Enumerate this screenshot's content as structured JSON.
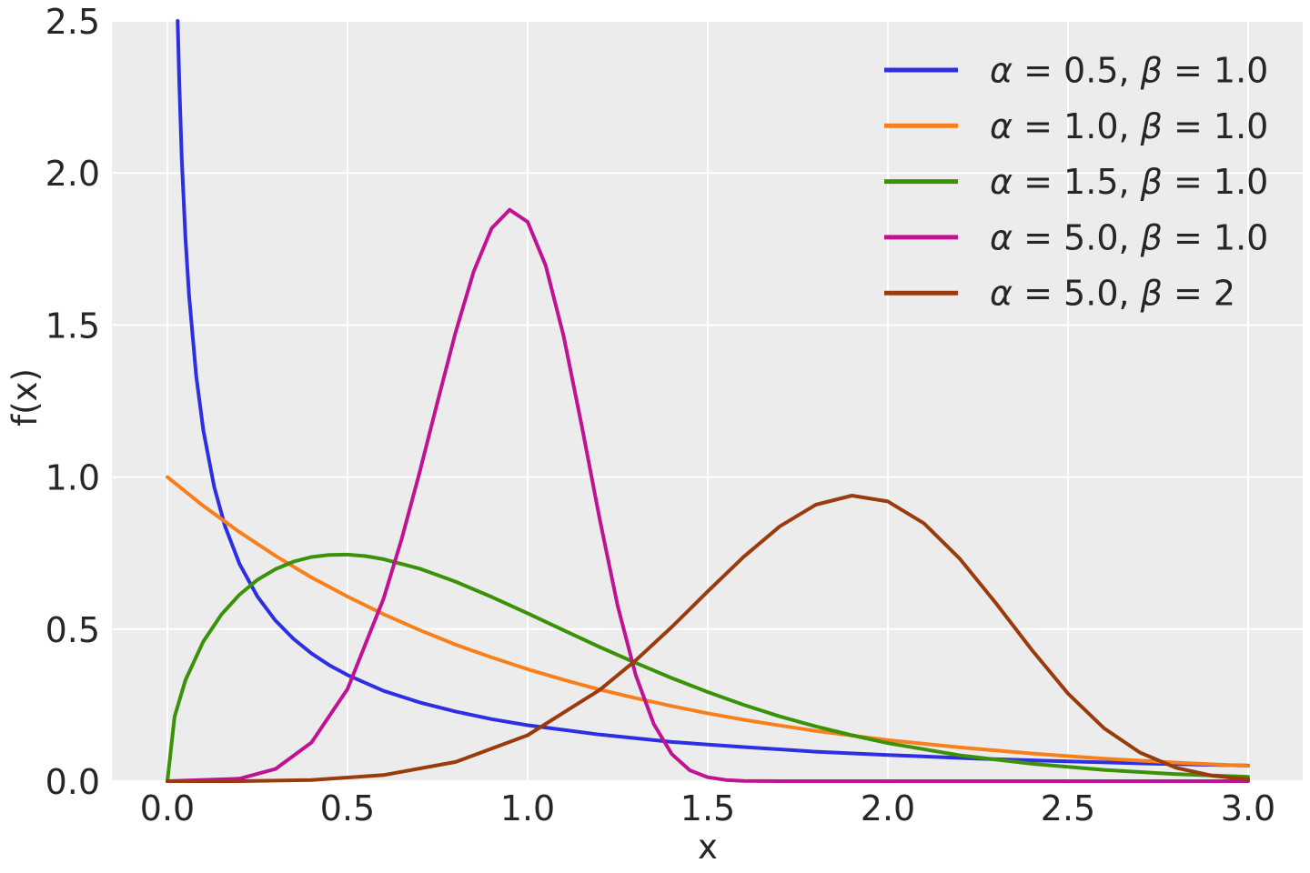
{
  "figure": {
    "background_color": "#ffffff",
    "plot_background_color": "#ececec",
    "grid_color": "#ffffff",
    "text_color": "#262626"
  },
  "chart_data": {
    "type": "line",
    "title": "",
    "xlabel": "x",
    "ylabel": "f(x)",
    "xlim": [
      -0.15,
      3.15
    ],
    "ylim": [
      0,
      2.5
    ],
    "grid": true,
    "legend_position": "upper right",
    "x_ticks": [
      {
        "value": 0.0,
        "label": "0.0"
      },
      {
        "value": 0.5,
        "label": "0.5"
      },
      {
        "value": 1.0,
        "label": "1.0"
      },
      {
        "value": 1.5,
        "label": "1.5"
      },
      {
        "value": 2.0,
        "label": "2.0"
      },
      {
        "value": 2.5,
        "label": "2.5"
      },
      {
        "value": 3.0,
        "label": "3.0"
      }
    ],
    "y_ticks": [
      {
        "value": 0.0,
        "label": "0.0"
      },
      {
        "value": 0.5,
        "label": "0.5"
      },
      {
        "value": 1.0,
        "label": "1.0"
      },
      {
        "value": 1.5,
        "label": "1.5"
      },
      {
        "value": 2.0,
        "label": "2.0"
      },
      {
        "value": 2.5,
        "label": "2.5"
      }
    ],
    "series": [
      {
        "name": "α = 0.5, β = 1.0",
        "color": "#2e2ee2",
        "points": [
          [
            0.0285,
            2.5
          ],
          [
            0.033,
            2.295
          ],
          [
            0.04,
            2.047
          ],
          [
            0.05,
            1.789
          ],
          [
            0.06,
            1.598
          ],
          [
            0.08,
            1.332
          ],
          [
            0.1,
            1.152
          ],
          [
            0.13,
            0.967
          ],
          [
            0.16,
            0.838
          ],
          [
            0.2,
            0.715
          ],
          [
            0.25,
            0.607
          ],
          [
            0.3,
            0.528
          ],
          [
            0.35,
            0.468
          ],
          [
            0.4,
            0.42
          ],
          [
            0.45,
            0.381
          ],
          [
            0.5,
            0.349
          ],
          [
            0.6,
            0.297
          ],
          [
            0.7,
            0.259
          ],
          [
            0.8,
            0.229
          ],
          [
            0.9,
            0.204
          ],
          [
            1.0,
            0.184
          ],
          [
            1.2,
            0.153
          ],
          [
            1.4,
            0.129
          ],
          [
            1.6,
            0.112
          ],
          [
            1.8,
            0.097
          ],
          [
            2.0,
            0.086
          ],
          [
            2.25,
            0.074
          ],
          [
            2.5,
            0.065
          ],
          [
            2.75,
            0.057
          ],
          [
            3.0,
            0.051
          ]
        ]
      },
      {
        "name": "α = 1.0, β = 1.0",
        "color": "#f8801c",
        "points": [
          [
            0,
            1.0
          ],
          [
            0.1,
            0.905
          ],
          [
            0.2,
            0.819
          ],
          [
            0.3,
            0.741
          ],
          [
            0.4,
            0.67
          ],
          [
            0.5,
            0.607
          ],
          [
            0.6,
            0.549
          ],
          [
            0.7,
            0.497
          ],
          [
            0.8,
            0.449
          ],
          [
            0.9,
            0.407
          ],
          [
            1.0,
            0.368
          ],
          [
            1.1,
            0.333
          ],
          [
            1.2,
            0.301
          ],
          [
            1.3,
            0.273
          ],
          [
            1.4,
            0.247
          ],
          [
            1.5,
            0.223
          ],
          [
            1.6,
            0.202
          ],
          [
            1.7,
            0.183
          ],
          [
            1.8,
            0.165
          ],
          [
            1.9,
            0.15
          ],
          [
            2.0,
            0.135
          ],
          [
            2.2,
            0.111
          ],
          [
            2.4,
            0.091
          ],
          [
            2.6,
            0.074
          ],
          [
            2.8,
            0.061
          ],
          [
            3.0,
            0.05
          ]
        ]
      },
      {
        "name": "α = 1.5, β = 1.0",
        "color": "#3a9208",
        "points": [
          [
            0,
            0
          ],
          [
            0.02,
            0.212
          ],
          [
            0.05,
            0.332
          ],
          [
            0.1,
            0.46
          ],
          [
            0.15,
            0.548
          ],
          [
            0.2,
            0.613
          ],
          [
            0.25,
            0.662
          ],
          [
            0.3,
            0.697
          ],
          [
            0.35,
            0.722
          ],
          [
            0.4,
            0.737
          ],
          [
            0.45,
            0.744
          ],
          [
            0.5,
            0.745
          ],
          [
            0.55,
            0.74
          ],
          [
            0.6,
            0.73
          ],
          [
            0.7,
            0.699
          ],
          [
            0.8,
            0.656
          ],
          [
            0.9,
            0.606
          ],
          [
            1.0,
            0.552
          ],
          [
            1.1,
            0.496
          ],
          [
            1.2,
            0.441
          ],
          [
            1.3,
            0.389
          ],
          [
            1.4,
            0.339
          ],
          [
            1.5,
            0.293
          ],
          [
            1.6,
            0.251
          ],
          [
            1.7,
            0.213
          ],
          [
            1.8,
            0.18
          ],
          [
            1.9,
            0.151
          ],
          [
            2.0,
            0.125
          ],
          [
            2.2,
            0.085
          ],
          [
            2.4,
            0.057
          ],
          [
            2.6,
            0.037
          ],
          [
            2.8,
            0.023
          ],
          [
            3.0,
            0.014
          ]
        ]
      },
      {
        "name": "α = 5.0, β = 1.0",
        "color": "#c01394",
        "points": [
          [
            0,
            0
          ],
          [
            0.2,
            0.008
          ],
          [
            0.3,
            0.04
          ],
          [
            0.4,
            0.127
          ],
          [
            0.5,
            0.303
          ],
          [
            0.6,
            0.6
          ],
          [
            0.65,
            0.795
          ],
          [
            0.7,
            1.015
          ],
          [
            0.75,
            1.248
          ],
          [
            0.8,
            1.476
          ],
          [
            0.85,
            1.675
          ],
          [
            0.9,
            1.818
          ],
          [
            0.95,
            1.879
          ],
          [
            1.0,
            1.839
          ],
          [
            1.05,
            1.696
          ],
          [
            1.1,
            1.463
          ],
          [
            1.15,
            1.17
          ],
          [
            1.2,
            0.862
          ],
          [
            1.25,
            0.576
          ],
          [
            1.3,
            0.349
          ],
          [
            1.35,
            0.188
          ],
          [
            1.4,
            0.089
          ],
          [
            1.45,
            0.036
          ],
          [
            1.5,
            0.013
          ],
          [
            1.55,
            0.004
          ],
          [
            1.6,
            0.001
          ],
          [
            1.7,
            0.0
          ],
          [
            2.0,
            0.0
          ],
          [
            2.5,
            0.0
          ],
          [
            3.0,
            0.0
          ]
        ]
      },
      {
        "name": "α = 5.0, β = 2",
        "color": "#9a3b0e",
        "points": [
          [
            0,
            0
          ],
          [
            0.2,
            0.0
          ],
          [
            0.4,
            0.004
          ],
          [
            0.6,
            0.02
          ],
          [
            0.8,
            0.063
          ],
          [
            1.0,
            0.151
          ],
          [
            1.2,
            0.3
          ],
          [
            1.3,
            0.397
          ],
          [
            1.4,
            0.507
          ],
          [
            1.5,
            0.624
          ],
          [
            1.6,
            0.738
          ],
          [
            1.7,
            0.838
          ],
          [
            1.8,
            0.909
          ],
          [
            1.9,
            0.939
          ],
          [
            2.0,
            0.92
          ],
          [
            2.1,
            0.848
          ],
          [
            2.2,
            0.731
          ],
          [
            2.3,
            0.585
          ],
          [
            2.4,
            0.431
          ],
          [
            2.5,
            0.288
          ],
          [
            2.6,
            0.174
          ],
          [
            2.7,
            0.094
          ],
          [
            2.8,
            0.044
          ],
          [
            2.9,
            0.018
          ],
          [
            3.0,
            0.006
          ]
        ]
      }
    ]
  }
}
